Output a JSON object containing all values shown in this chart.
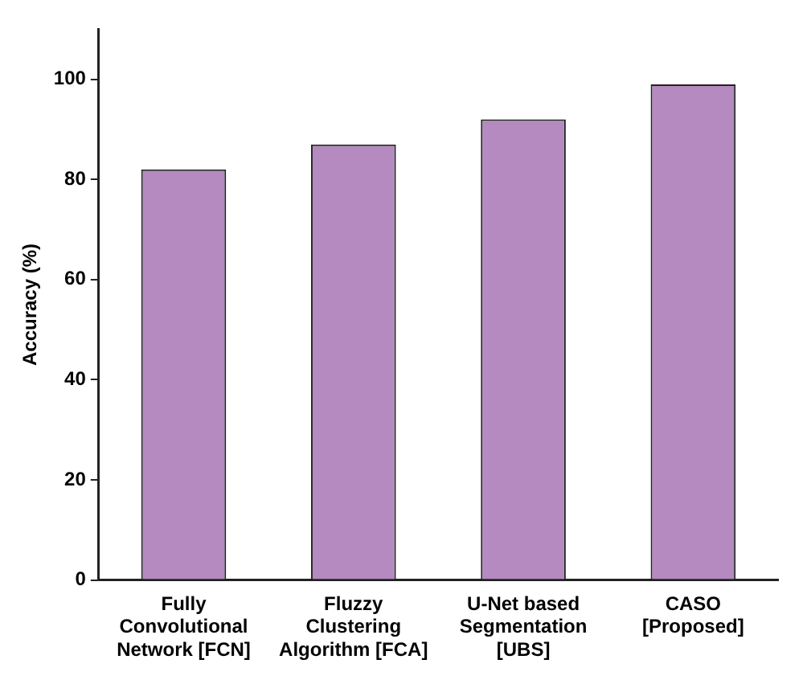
{
  "chart_data": {
    "type": "bar",
    "ylabel": "Accuracy (%)",
    "categories": [
      "Fully\nConvolutional\nNetwork [FCN]",
      "Fluzzy\nClustering\nAlgorithm [FCA]",
      "U-Net based\nSegmentation\n[UBS]",
      "CASO\n[Proposed]"
    ],
    "values": [
      82,
      87,
      92,
      99
    ],
    "color": "#b48ac0",
    "ylim": [
      0,
      110
    ],
    "yticks": [
      0,
      20,
      40,
      60,
      80,
      100
    ],
    "grid": false,
    "legend": false
  }
}
